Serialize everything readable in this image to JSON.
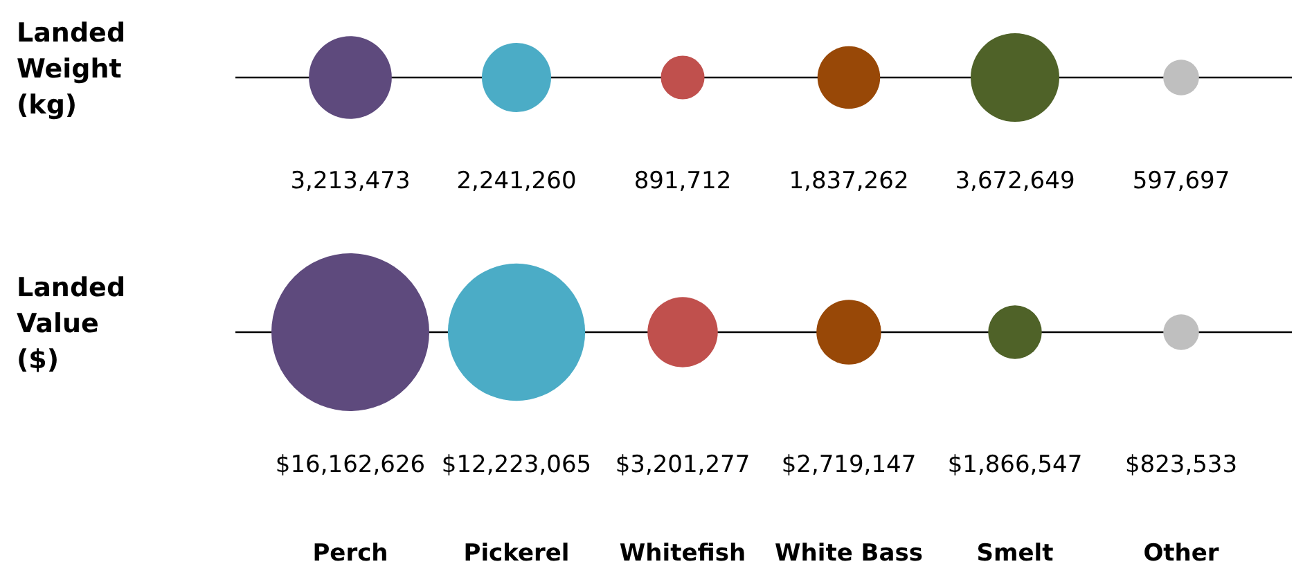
{
  "chart_data": [
    {
      "type": "other",
      "title": "Landed Weight (kg)",
      "categories": [
        null,
        null,
        null,
        null,
        null,
        null
      ],
      "values": [
        3213473,
        2241260,
        891712,
        1837262,
        3672649,
        597697
      ],
      "value_labels": [
        "3,213,473",
        "2,241,260",
        "891,712",
        "1,837,262",
        "3,672,649",
        "597,697"
      ],
      "colors": [
        "#5e4a7d",
        "#4bacc6",
        "#c0504d",
        "#984807",
        "#4f6228",
        "#bfbfbf"
      ]
    },
    {
      "type": "other",
      "title": "Landed Value ($)",
      "categories": [
        "Perch",
        "Pickerel",
        "Whitefish",
        "White Bass",
        "Smelt",
        "Other"
      ],
      "values": [
        16162626,
        12223065,
        3201277,
        2719147,
        1866547,
        823533
      ],
      "value_labels": [
        "$16,162,626",
        "$12,223,065",
        "$3,201,277",
        "$2,719,147",
        "$1,866,547",
        "$823,533"
      ],
      "colors": [
        "#5e4a7d",
        "#4bacc6",
        "#c0504d",
        "#984807",
        "#4f6228",
        "#bfbfbf"
      ]
    }
  ]
}
